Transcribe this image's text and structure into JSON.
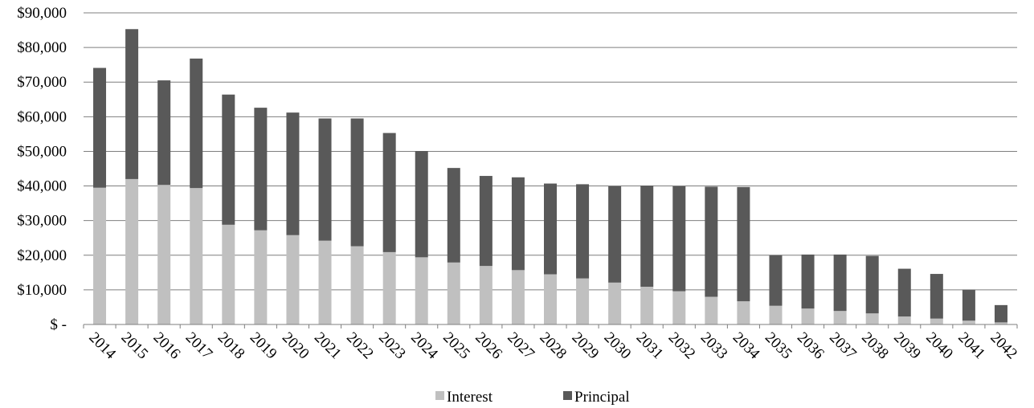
{
  "chart_data": {
    "type": "bar",
    "stacked": true,
    "title": "",
    "xlabel": "",
    "ylabel": "",
    "ylim": [
      0,
      90000
    ],
    "grid": true,
    "legend_position": "bottom",
    "y_ticks": [
      {
        "value": 0,
        "label": "$ -"
      },
      {
        "value": 10000,
        "label": "$10,000"
      },
      {
        "value": 20000,
        "label": "$20,000"
      },
      {
        "value": 30000,
        "label": "$30,000"
      },
      {
        "value": 40000,
        "label": "$40,000"
      },
      {
        "value": 50000,
        "label": "$50,000"
      },
      {
        "value": 60000,
        "label": "$60,000"
      },
      {
        "value": 70000,
        "label": "$70,000"
      },
      {
        "value": 80000,
        "label": "$80,000"
      },
      {
        "value": 90000,
        "label": "$90,000"
      }
    ],
    "categories": [
      "2014",
      "2015",
      "2016",
      "2017",
      "2018",
      "2019",
      "2020",
      "2021",
      "2022",
      "2023",
      "2024",
      "2025",
      "2026",
      "2027",
      "2028",
      "2029",
      "2030",
      "2031",
      "2032",
      "2033",
      "2034",
      "2035",
      "2036",
      "2037",
      "2038",
      "2039",
      "2040",
      "2041",
      "2042"
    ],
    "series": [
      {
        "name": "Interest",
        "color": "#c0c0c0",
        "values": [
          39500,
          42000,
          40300,
          39400,
          28800,
          27200,
          25800,
          24200,
          22600,
          20900,
          19400,
          17900,
          16900,
          15700,
          14500,
          13300,
          12100,
          10900,
          9600,
          8000,
          6700,
          5400,
          4600,
          3900,
          3200,
          2300,
          1700,
          1100,
          600
        ]
      },
      {
        "name": "Principal",
        "color": "#595959",
        "values": [
          34600,
          43300,
          30200,
          37400,
          37600,
          35400,
          35400,
          35300,
          36900,
          34400,
          30700,
          27300,
          26000,
          26800,
          26200,
          27200,
          27800,
          29200,
          30300,
          31800,
          33000,
          14600,
          15600,
          16300,
          16600,
          13800,
          12900,
          8900,
          5000
        ]
      }
    ]
  }
}
